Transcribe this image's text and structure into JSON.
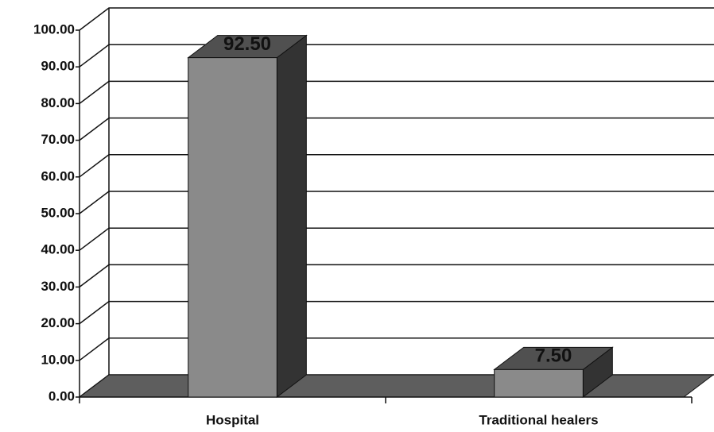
{
  "chart_data": {
    "type": "bar3d",
    "categories": [
      "Hospital",
      "Traditional healers"
    ],
    "values": [
      92.5,
      7.5
    ],
    "value_labels": [
      "92.50",
      "7.50"
    ],
    "color": "#8a8a8a",
    "ylim": [
      0,
      100
    ],
    "yticks": [
      {
        "value": 0,
        "label": "0.00"
      },
      {
        "value": 10,
        "label": "10.00"
      },
      {
        "value": 20,
        "label": "20.00"
      },
      {
        "value": 30,
        "label": "30.00"
      },
      {
        "value": 40,
        "label": "40.00"
      },
      {
        "value": 50,
        "label": "50.00"
      },
      {
        "value": 60,
        "label": "60.00"
      },
      {
        "value": 70,
        "label": "70.00"
      },
      {
        "value": 80,
        "label": "80.00"
      },
      {
        "value": 90,
        "label": "90.00"
      },
      {
        "value": 100,
        "label": "100.00"
      }
    ],
    "grid": true
  }
}
